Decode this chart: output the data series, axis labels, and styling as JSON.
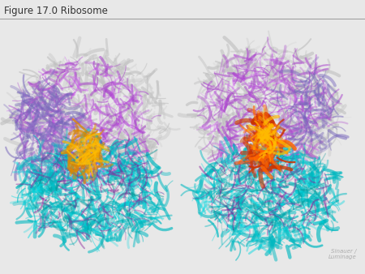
{
  "title": "Figure 17.0 Ribosome",
  "title_fontsize": 8.5,
  "title_color": "#333333",
  "bg_color": "#000000",
  "fig_bg_color": "#e8e8e8",
  "watermark_line1": "Sinauer /",
  "watermark_line2": "Luminage",
  "watermark_color": "#999999",
  "watermark_fontsize": 5.0,
  "separator_color": "#999999",
  "title_bar_height": 0.075
}
